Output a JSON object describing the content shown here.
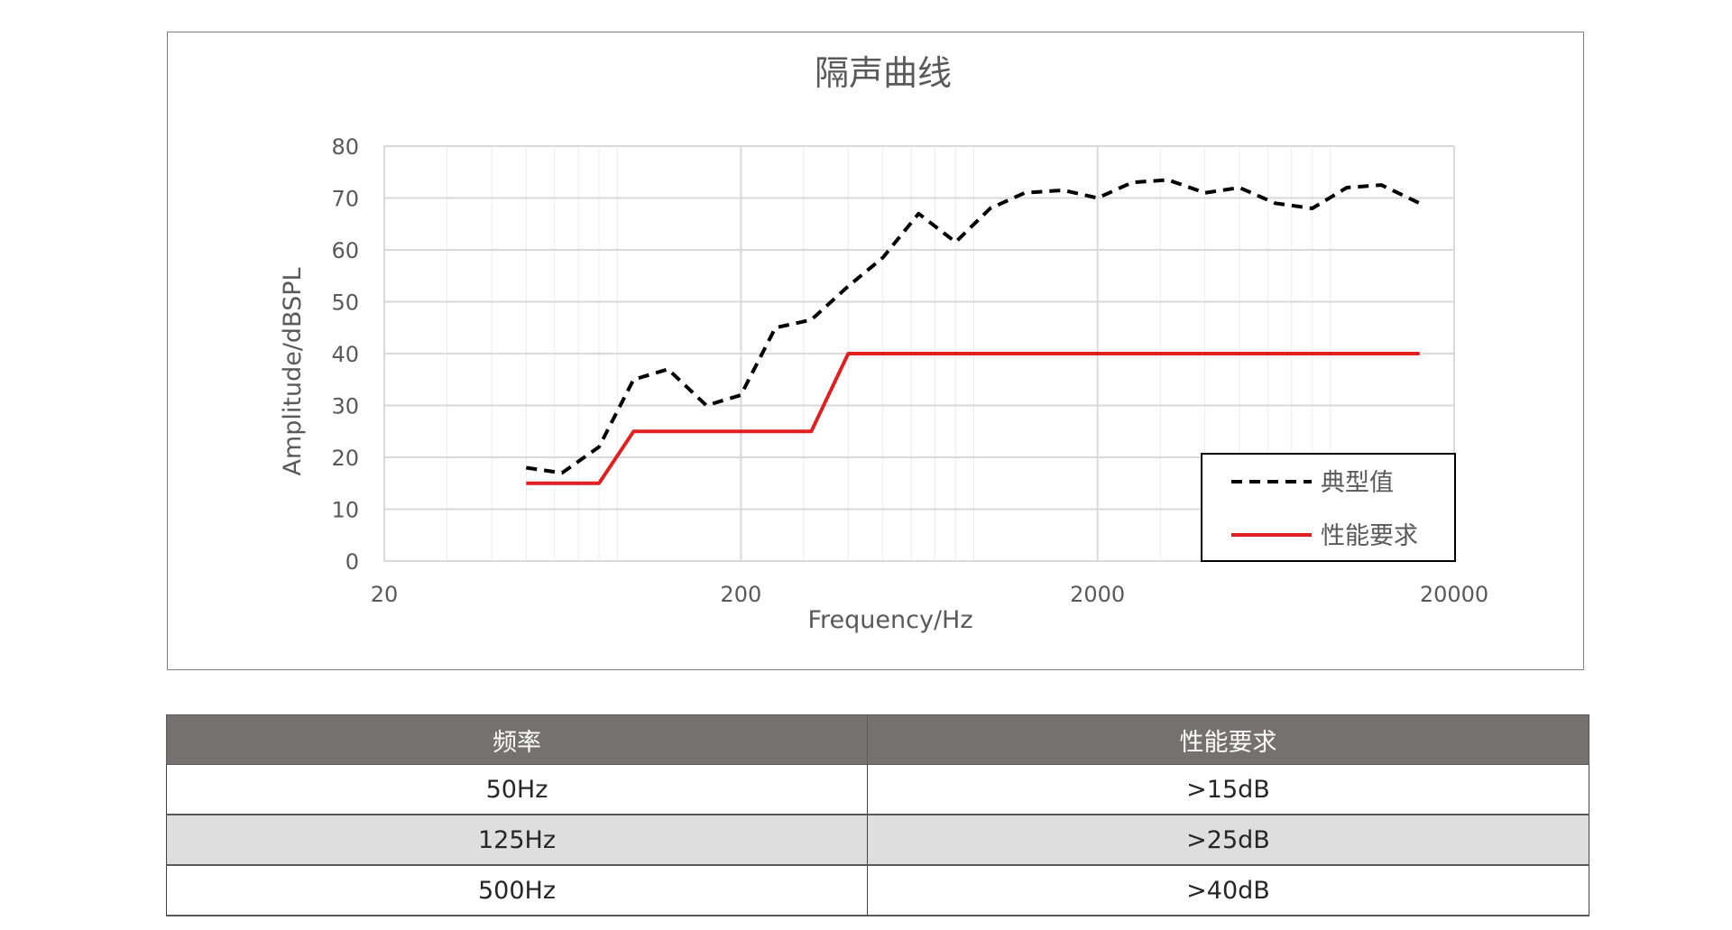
{
  "chart_data": {
    "type": "line",
    "title": "隔声曲线",
    "xlabel": "Frequency/Hz",
    "ylabel": "Amplitude/dBSPL",
    "x_scale": "log",
    "xlim": [
      20,
      20000
    ],
    "ylim": [
      0,
      80
    ],
    "x_ticks": [
      20,
      200,
      2000,
      20000
    ],
    "y_ticks": [
      0,
      10,
      20,
      30,
      40,
      50,
      60,
      70,
      80
    ],
    "grid": true,
    "legend_position": "bottom-right",
    "series": [
      {
        "name": "典型值",
        "style": "dashed",
        "color": "#000000",
        "x": [
          50,
          63,
          80,
          100,
          125,
          160,
          200,
          250,
          315,
          400,
          500,
          630,
          800,
          1000,
          1250,
          1600,
          2000,
          2500,
          3150,
          4000,
          5000,
          6300,
          8000,
          10000,
          12500,
          16000
        ],
        "y": [
          18,
          17,
          22,
          35,
          37,
          30,
          32,
          45,
          46.5,
          53,
          58.5,
          67,
          61.5,
          68,
          71,
          71.5,
          70,
          73,
          73.5,
          71,
          72,
          69,
          68,
          72,
          72.5,
          69
        ]
      },
      {
        "name": "性能要求",
        "style": "solid",
        "color": "#e02020",
        "x": [
          50,
          80,
          100,
          315,
          400,
          16000
        ],
        "y": [
          15,
          15,
          25,
          25,
          40,
          40
        ]
      }
    ]
  },
  "table": {
    "headers": [
      "频率",
      "性能要求"
    ],
    "rows": [
      [
        "50Hz",
        ">15dB"
      ],
      [
        "125Hz",
        ">25dB"
      ],
      [
        "500Hz",
        ">40dB"
      ]
    ]
  },
  "colors": {
    "axis_text": "#595959",
    "grid": "#d9d9d9",
    "header_bg": "#767171",
    "stripe_bg": "#dedede"
  }
}
